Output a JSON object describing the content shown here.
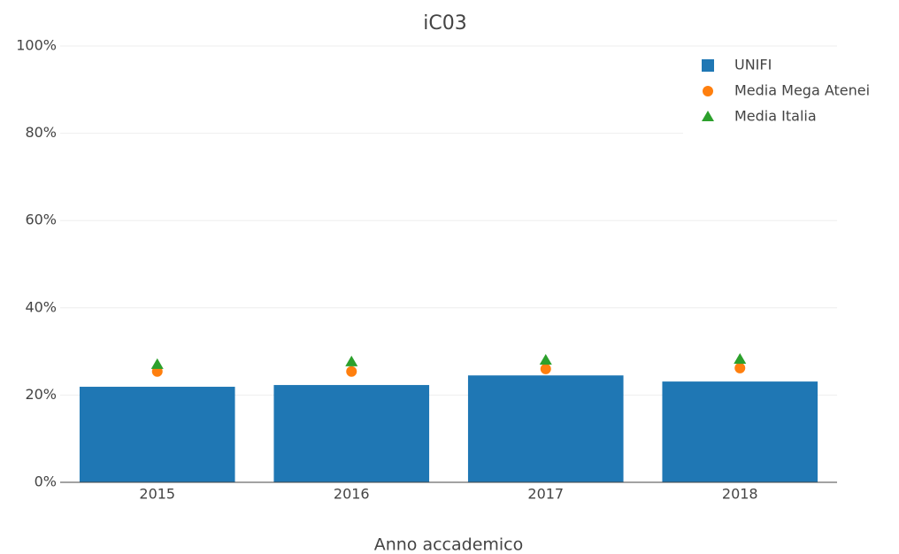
{
  "chart_data": {
    "type": "bar",
    "title": "iC03",
    "x_label": "Anno accademico",
    "categories": [
      "2015",
      "2016",
      "2017",
      "2018"
    ],
    "series": [
      {
        "name": "UNIFI",
        "type": "bar",
        "marker": "square",
        "color": "#1f77b4",
        "values": [
          21.9,
          22.3,
          24.5,
          23.1
        ]
      },
      {
        "name": "Media Mega Atenei",
        "type": "scatter",
        "marker": "circle",
        "color": "#ff7f0e",
        "values": [
          25.4,
          25.4,
          26.0,
          26.2
        ]
      },
      {
        "name": "Media Italia",
        "type": "scatter",
        "marker": "triangle-up",
        "color": "#2ca02c",
        "values": [
          27.0,
          27.6,
          28.0,
          28.2
        ]
      }
    ],
    "ylim": [
      0,
      100
    ],
    "yticks": [
      {
        "value": 0,
        "label": "0%"
      },
      {
        "value": 20,
        "label": "20%"
      },
      {
        "value": 40,
        "label": "40%"
      },
      {
        "value": 60,
        "label": "60%"
      },
      {
        "value": 80,
        "label": "80%"
      },
      {
        "value": 100,
        "label": "100%"
      }
    ],
    "grid": true,
    "legend": "top-right"
  }
}
